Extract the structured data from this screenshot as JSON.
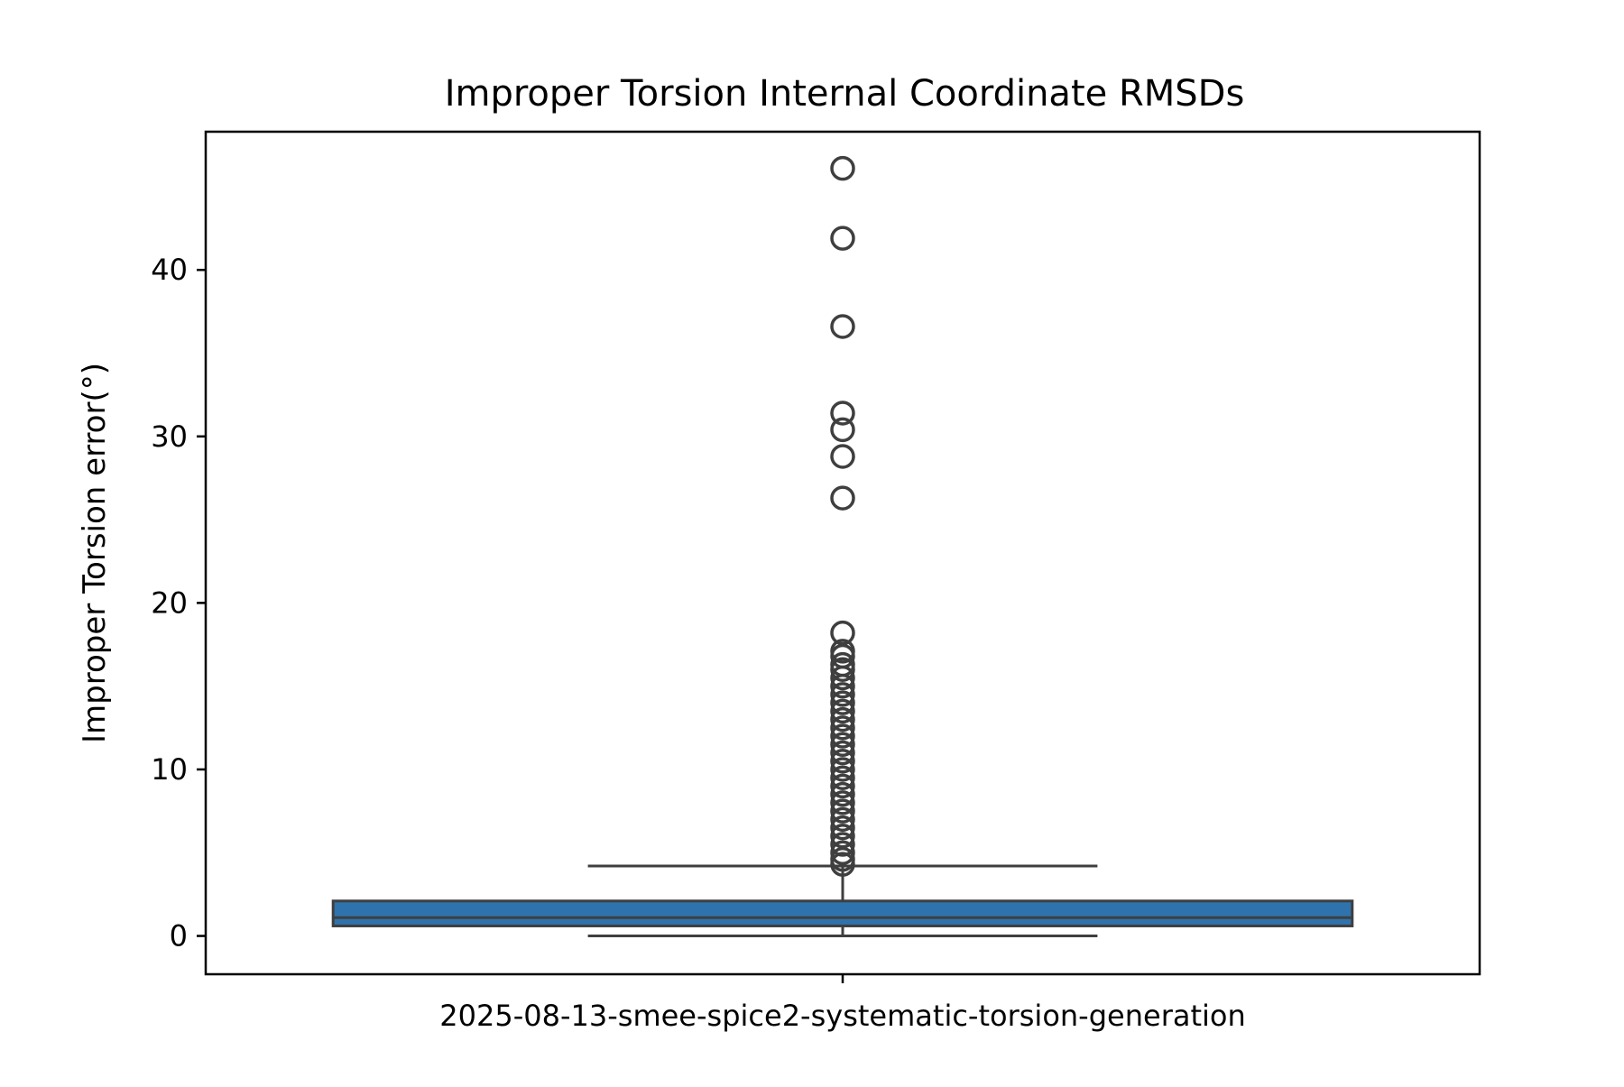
{
  "chart_data": {
    "type": "box",
    "title": "Improper Torsion Internal Coordinate RMSDs",
    "xlabel": "",
    "ylabel": "Improper Torsion error(°)",
    "categories": [
      "2025-08-13-smee-spice2-systematic-torsion-generation"
    ],
    "ylim": [
      -2.3,
      48.3
    ],
    "yticks": [
      0,
      10,
      20,
      30,
      40
    ],
    "grid": false,
    "legend": "none",
    "boxes": [
      {
        "category": "2025-08-13-smee-spice2-systematic-torsion-generation",
        "whisker_low": 0.0,
        "q1": 0.6,
        "median": 1.1,
        "q3": 2.1,
        "whisker_high": 4.2,
        "outliers": [
          4.3,
          4.6,
          5.0,
          5.5,
          6.0,
          6.5,
          7.0,
          7.5,
          8.0,
          8.5,
          9.0,
          9.5,
          10.0,
          10.5,
          11.0,
          11.5,
          12.0,
          12.5,
          13.0,
          13.5,
          14.0,
          14.5,
          15.0,
          15.5,
          16.0,
          16.3,
          16.8,
          17.1,
          18.2,
          26.3,
          28.8,
          30.4,
          31.4,
          36.6,
          41.9,
          46.1
        ]
      }
    ],
    "colors": {
      "box_fill": "#2f73ad",
      "line": "#3f3f3f",
      "axes": "#000000"
    }
  }
}
